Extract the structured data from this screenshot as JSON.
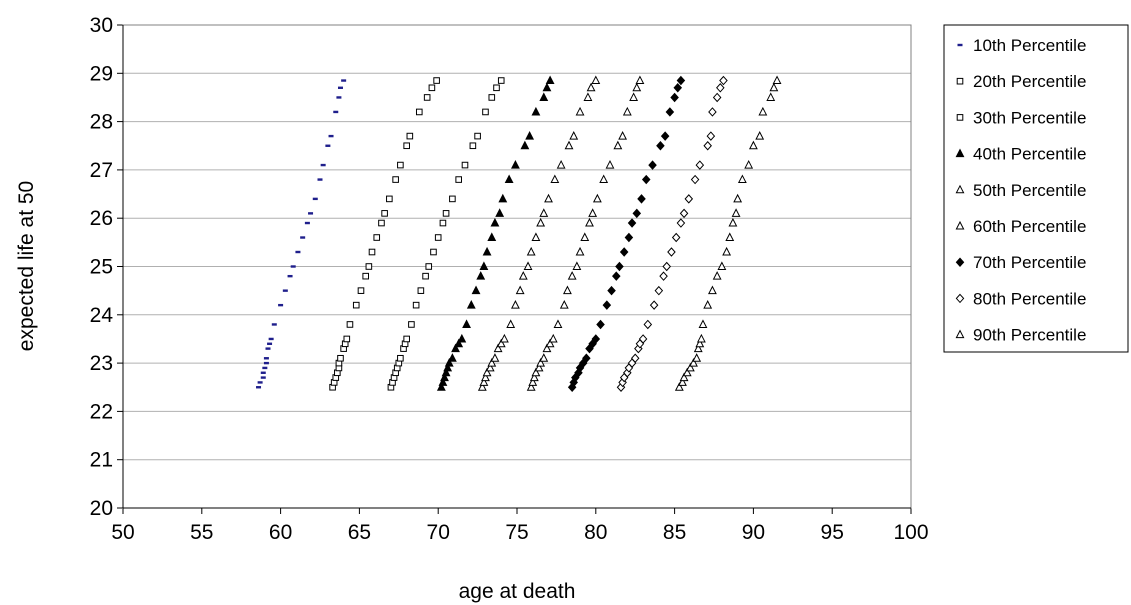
{
  "chart_data": {
    "type": "scatter",
    "title": "",
    "xlabel": "age at death",
    "ylabel": "expected life at 50",
    "xlim": [
      50,
      100
    ],
    "ylim": [
      20,
      30
    ],
    "x_ticks": [
      "50",
      "55",
      "60",
      "65",
      "70",
      "75",
      "80",
      "85",
      "90",
      "95",
      "100"
    ],
    "y_ticks": [
      "20",
      "21",
      "22",
      "23",
      "24",
      "25",
      "26",
      "27",
      "28",
      "29",
      "30"
    ],
    "grid": "horizontal",
    "legend_position": "right",
    "y_levels": [
      22.5,
      22.6,
      22.7,
      22.8,
      22.9,
      23.0,
      23.1,
      23.3,
      23.4,
      23.5,
      23.8,
      24.2,
      24.5,
      24.8,
      25.0,
      25.3,
      25.6,
      25.9,
      26.1,
      26.4,
      26.8,
      27.1,
      27.5,
      27.7,
      28.2,
      28.5,
      28.7,
      28.85
    ],
    "series": [
      {
        "name": "10th Percentile",
        "marker": "dash",
        "color": "#1f1f8c",
        "x": [
          58.6,
          58.7,
          58.9,
          58.9,
          59.0,
          59.1,
          59.1,
          59.2,
          59.3,
          59.4,
          59.6,
          60.0,
          60.3,
          60.6,
          60.8,
          61.1,
          61.4,
          61.7,
          61.9,
          62.2,
          62.5,
          62.7,
          63.0,
          63.2,
          63.5,
          63.7,
          63.8,
          64.0
        ]
      },
      {
        "name": "20th Percentile",
        "marker": "square",
        "color": "#000000",
        "x": [
          63.3,
          63.4,
          63.5,
          63.6,
          63.7,
          63.7,
          63.8,
          64.0,
          64.1,
          64.2,
          64.4,
          64.8,
          65.1,
          65.4,
          65.6,
          65.8,
          66.1,
          66.4,
          66.6,
          66.9,
          67.3,
          67.6,
          68.0,
          68.2,
          68.8,
          69.3,
          69.6,
          69.9
        ]
      },
      {
        "name": "30th Percentile",
        "marker": "square",
        "color": "#000000",
        "x": [
          67.0,
          67.1,
          67.2,
          67.3,
          67.4,
          67.5,
          67.6,
          67.8,
          67.9,
          68.0,
          68.3,
          68.6,
          68.9,
          69.2,
          69.4,
          69.7,
          70.0,
          70.3,
          70.5,
          70.9,
          71.3,
          71.7,
          72.2,
          72.5,
          73.0,
          73.4,
          73.7,
          74.0
        ]
      },
      {
        "name": "40th Percentile",
        "marker": "triangle-filled",
        "color": "#000000",
        "x": [
          70.2,
          70.3,
          70.4,
          70.5,
          70.6,
          70.7,
          70.9,
          71.1,
          71.3,
          71.5,
          71.8,
          72.1,
          72.4,
          72.7,
          72.9,
          73.1,
          73.4,
          73.6,
          73.9,
          74.1,
          74.5,
          74.9,
          75.5,
          75.8,
          76.2,
          76.7,
          76.9,
          77.1
        ]
      },
      {
        "name": "50th Percentile",
        "marker": "triangle",
        "color": "#000000",
        "x": [
          72.8,
          72.9,
          73.0,
          73.1,
          73.3,
          73.4,
          73.6,
          73.8,
          74.0,
          74.2,
          74.6,
          74.9,
          75.2,
          75.4,
          75.7,
          75.9,
          76.2,
          76.5,
          76.7,
          77.0,
          77.4,
          77.8,
          78.3,
          78.6,
          79.0,
          79.5,
          79.7,
          80.0
        ]
      },
      {
        "name": "60th Percentile",
        "marker": "triangle",
        "color": "#000000",
        "x": [
          75.9,
          76.0,
          76.1,
          76.2,
          76.4,
          76.5,
          76.7,
          76.9,
          77.1,
          77.3,
          77.6,
          78.0,
          78.2,
          78.5,
          78.8,
          79.0,
          79.3,
          79.6,
          79.8,
          80.1,
          80.5,
          80.9,
          81.4,
          81.7,
          82.0,
          82.4,
          82.6,
          82.8
        ]
      },
      {
        "name": "70th Percentile",
        "marker": "diamond-filled",
        "color": "#000000",
        "x": [
          78.5,
          78.6,
          78.7,
          78.9,
          79.0,
          79.2,
          79.4,
          79.6,
          79.8,
          80.0,
          80.3,
          80.7,
          81.0,
          81.3,
          81.5,
          81.8,
          82.1,
          82.3,
          82.6,
          82.9,
          83.2,
          83.6,
          84.1,
          84.4,
          84.7,
          85.0,
          85.2,
          85.4
        ]
      },
      {
        "name": "80th Percentile",
        "marker": "diamond",
        "color": "#000000",
        "x": [
          81.6,
          81.7,
          81.8,
          82.0,
          82.1,
          82.3,
          82.5,
          82.7,
          82.8,
          83.0,
          83.3,
          83.7,
          84.0,
          84.3,
          84.5,
          84.8,
          85.1,
          85.4,
          85.6,
          85.9,
          86.3,
          86.6,
          87.1,
          87.3,
          87.4,
          87.7,
          87.9,
          88.1
        ]
      },
      {
        "name": "90th Percentile",
        "marker": "triangle",
        "color": "#000000",
        "x": [
          85.3,
          85.5,
          85.6,
          85.8,
          86.0,
          86.2,
          86.4,
          86.5,
          86.6,
          86.7,
          86.8,
          87.1,
          87.4,
          87.7,
          88.0,
          88.3,
          88.5,
          88.7,
          88.9,
          89.0,
          89.3,
          89.7,
          90.0,
          90.4,
          90.6,
          91.1,
          91.3,
          91.5
        ]
      }
    ]
  }
}
